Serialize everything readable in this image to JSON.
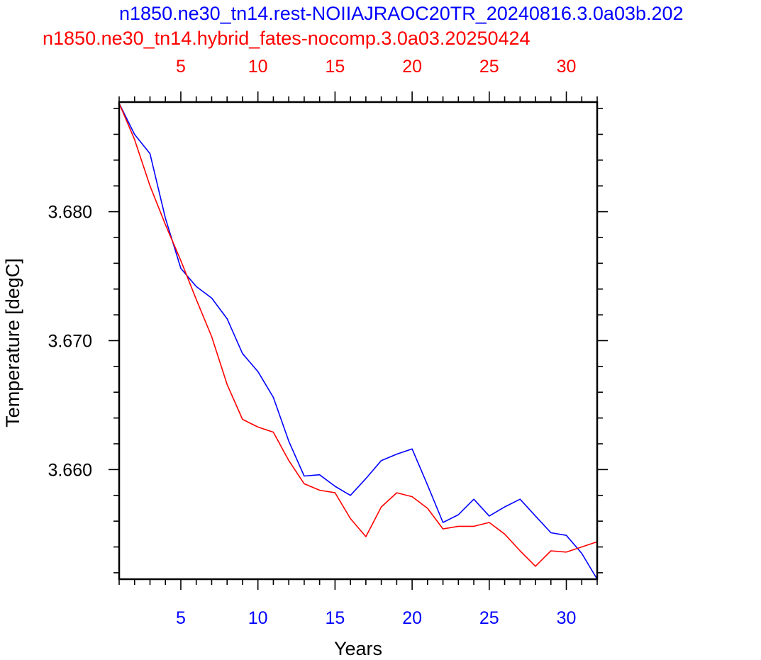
{
  "chart_data": {
    "type": "line",
    "titles": [
      {
        "text": "n1850.ne30_tn14.rest-NOIIAJRAOC20TR_20240816.3.0a03b.202",
        "color": "#0000ff"
      },
      {
        "text": "n1850.ne30_tn14.hybrid_fates-nocomp.3.0a03.20250424",
        "color": "#ff0000"
      }
    ],
    "xlabel": "Years",
    "ylabel": "Temperature [degC]",
    "xlim": [
      1,
      32
    ],
    "ylim": [
      3.6515,
      3.6885
    ],
    "x_ticks_bottom": [
      5,
      10,
      15,
      20,
      25,
      30
    ],
    "x_ticks_top": [
      5,
      10,
      15,
      20,
      25,
      30
    ],
    "x_tick_color_bottom": "#0000ff",
    "x_tick_color_top": "#ff0000",
    "y_ticks": [
      3.66,
      3.67,
      3.68
    ],
    "y_tick_labels": [
      "3.660",
      "3.670",
      "3.680"
    ],
    "grid": false,
    "series": [
      {
        "name": "n1850.ne30_tn14.rest-NOIIAJRAOC20TR_20240816.3.0a03b.202",
        "color": "#0000ff",
        "x": [
          1,
          2,
          3,
          4,
          5,
          6,
          7,
          8,
          9,
          10,
          11,
          12,
          13,
          14,
          15,
          16,
          17,
          18,
          19,
          20,
          21,
          22,
          23,
          24,
          25,
          26,
          27,
          28,
          29,
          30,
          31,
          32
        ],
        "values": [
          3.6884,
          3.686,
          3.6845,
          3.6795,
          3.6756,
          3.6742,
          3.6733,
          3.6717,
          3.669,
          3.6676,
          3.6656,
          3.6622,
          3.6595,
          3.6596,
          3.6587,
          3.658,
          3.6593,
          3.6607,
          3.6612,
          3.6616,
          3.6588,
          3.6559,
          3.6565,
          3.6577,
          3.6564,
          3.6571,
          3.6577,
          3.6564,
          3.6551,
          3.6549,
          3.6535,
          3.6515
        ]
      },
      {
        "name": "n1850.ne30_tn14.hybrid_fates-nocomp.3.0a03.20250424",
        "color": "#ff0000",
        "x": [
          1,
          2,
          3,
          4,
          5,
          6,
          7,
          8,
          9,
          10,
          11,
          12,
          13,
          14,
          15,
          16,
          17,
          18,
          19,
          20,
          21,
          22,
          23,
          24,
          25,
          26,
          27,
          28,
          29,
          30,
          31,
          32
        ],
        "values": [
          3.6884,
          3.6856,
          3.682,
          3.679,
          3.6762,
          3.6732,
          3.6703,
          3.6666,
          3.6639,
          3.6633,
          3.6629,
          3.6607,
          3.6589,
          3.6584,
          3.6582,
          3.6562,
          3.6548,
          3.6571,
          3.6582,
          3.6579,
          3.657,
          3.6554,
          3.6556,
          3.6556,
          3.6559,
          3.655,
          3.6537,
          3.6525,
          3.6537,
          3.6536,
          3.654,
          3.6544
        ]
      }
    ]
  }
}
